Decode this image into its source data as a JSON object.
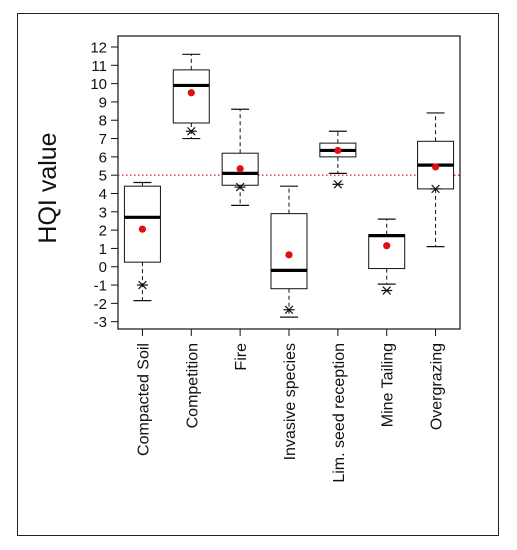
{
  "chart_data": {
    "type": "boxplot",
    "ylabel": "HQI value",
    "xlabel": "",
    "ylim": [
      -3.4,
      12.6
    ],
    "yticks": [
      12,
      11,
      10,
      9,
      8,
      7,
      6,
      5,
      4,
      3,
      2,
      1,
      0,
      -1,
      -2,
      -3
    ],
    "ytick_labels": [
      "12",
      "11",
      "10",
      "9",
      "8",
      "7",
      "6",
      "5",
      "4",
      "3",
      "2",
      "1",
      "0",
      "-1",
      "-2",
      "-3"
    ],
    "reference_line": {
      "y": 5,
      "style": "dotted",
      "color": "#e03030"
    },
    "categories": [
      "Compacted Soil",
      "Competition",
      "Fire",
      "Invasive species",
      "Lim. seed reception",
      "Mine Tailing",
      "Overgrazing"
    ],
    "boxes": [
      {
        "category": "Compacted Soil",
        "whisker_low": -1.85,
        "q1": 0.25,
        "median": 2.7,
        "q3": 4.4,
        "whisker_high": 4.6,
        "mean": 2.05,
        "outliers": [
          -1.0
        ]
      },
      {
        "category": "Competition",
        "whisker_low": 7.0,
        "q1": 7.85,
        "median": 9.9,
        "q3": 10.75,
        "whisker_high": 11.6,
        "mean": 9.5,
        "outliers": [
          7.4
        ]
      },
      {
        "category": "Fire",
        "whisker_low": 3.35,
        "q1": 4.45,
        "median": 5.1,
        "q3": 6.2,
        "whisker_high": 8.6,
        "mean": 5.35,
        "outliers": [
          4.35
        ]
      },
      {
        "category": "Invasive species",
        "whisker_low": -2.75,
        "q1": -1.2,
        "median": -0.2,
        "q3": 2.9,
        "whisker_high": 4.4,
        "mean": 0.65,
        "outliers": [
          -2.35
        ]
      },
      {
        "category": "Lim. seed reception",
        "whisker_low": 5.1,
        "q1": 6.0,
        "median": 6.35,
        "q3": 6.75,
        "whisker_high": 7.4,
        "mean": 6.35,
        "outliers": [
          4.5
        ]
      },
      {
        "category": "Mine Tailing",
        "whisker_low": -0.95,
        "q1": -0.1,
        "median": 1.7,
        "q3": 1.75,
        "whisker_high": 2.6,
        "mean": 1.15,
        "outliers": [
          -1.3
        ]
      },
      {
        "category": "Overgrazing",
        "whisker_low": 1.1,
        "q1": 4.25,
        "median": 5.55,
        "q3": 6.85,
        "whisker_high": 8.4,
        "mean": 5.45,
        "outliers": [
          4.25
        ]
      }
    ],
    "colors": {
      "mean_marker": "#e01010",
      "box": "#111111"
    },
    "grid": false,
    "legend": "none"
  }
}
